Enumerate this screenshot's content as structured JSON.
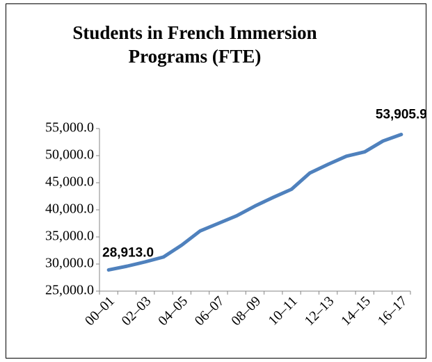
{
  "chart_data": {
    "type": "line",
    "title": [
      "Students in French Immersion",
      "Programs (FTE)"
    ],
    "categories": [
      "00–01",
      null,
      "02–03",
      null,
      "04–05",
      null,
      "06–07",
      null,
      "08–09",
      null,
      "10–11",
      null,
      "12–13",
      null,
      "14–15",
      null,
      "16–17"
    ],
    "series": [
      {
        "name": "Students in French Immersion Programs (FTE)",
        "color": "#4f81bd",
        "values": [
          28913.0,
          29600,
          30400,
          31300,
          33500,
          36100,
          37500,
          38900,
          40700,
          42300,
          43800,
          46800,
          48400,
          49900,
          50700,
          52700,
          53905.9
        ],
        "value_labels": [
          "28,913.0",
          null,
          null,
          null,
          null,
          null,
          null,
          null,
          null,
          null,
          null,
          null,
          null,
          null,
          null,
          null,
          "53,905.9"
        ]
      }
    ],
    "ylim": [
      25000,
      55000
    ],
    "yticks": [
      {
        "value": 25000,
        "label": "25,000.0"
      },
      {
        "value": 30000,
        "label": "30,000.0"
      },
      {
        "value": 35000,
        "label": "35,000.0"
      },
      {
        "value": 40000,
        "label": "40,000.0"
      },
      {
        "value": 45000,
        "label": "45,000.0"
      },
      {
        "value": 50000,
        "label": "50,000.0"
      },
      {
        "value": 55000,
        "label": "55,000.0"
      }
    ],
    "grid": false
  }
}
